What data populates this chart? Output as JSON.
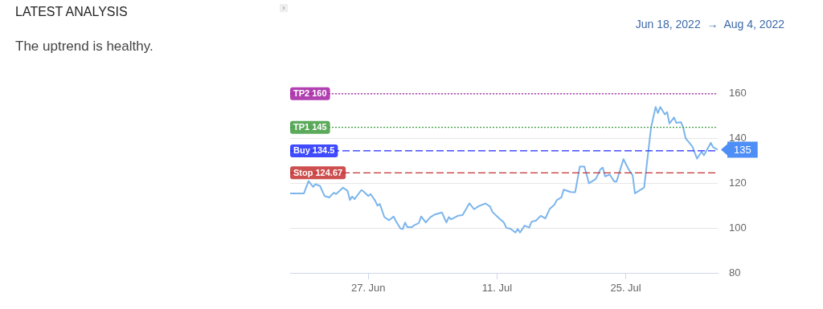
{
  "chart_data": {
    "type": "line",
    "title": "LATEST ANALYSIS",
    "subtitle": "The uptrend is healthy.",
    "annotations": [
      "Jun 18, 2022  →  Aug 4, 2022"
    ],
    "x": [
      "2022-06-18T12:00",
      "2022-06-20T00:00",
      "2022-06-20T12:00",
      "2022-06-21T00:00",
      "2022-06-21T06:00",
      "2022-06-21T18:00",
      "2022-06-22T06:00",
      "2022-06-22T18:00",
      "2022-06-23T06:00",
      "2022-06-23T12:00",
      "2022-06-24T06:00",
      "2022-06-24T18:00",
      "2022-06-25T00:00",
      "2022-06-25T06:00",
      "2022-06-25T12:00",
      "2022-06-26T06:00",
      "2022-06-26T12:00",
      "2022-06-27T00:00",
      "2022-06-27T06:00",
      "2022-06-27T18:00",
      "2022-06-28T00:00",
      "2022-06-28T06:00",
      "2022-06-28T18:00",
      "2022-06-29T06:00",
      "2022-06-29T18:00",
      "2022-06-30T00:00",
      "2022-06-30T12:00",
      "2022-06-30T18:00",
      "2022-07-01T00:00",
      "2022-07-01T06:00",
      "2022-07-01T18:00",
      "2022-07-02T00:00",
      "2022-07-02T12:00",
      "2022-07-02T18:00",
      "2022-07-03T06:00",
      "2022-07-03T18:00",
      "2022-07-04T06:00",
      "2022-07-05T00:00",
      "2022-07-05T12:00",
      "2022-07-05T18:00",
      "2022-07-06T00:00",
      "2022-07-06T18:00",
      "2022-07-07T06:00",
      "2022-07-08T00:00",
      "2022-07-08T12:00",
      "2022-07-09T00:00",
      "2022-07-09T18:00",
      "2022-07-10T06:00",
      "2022-07-10T12:00",
      "2022-07-11T06:00",
      "2022-07-11T18:00",
      "2022-07-12T00:00",
      "2022-07-12T12:00",
      "2022-07-13T00:00",
      "2022-07-13T06:00",
      "2022-07-13T12:00",
      "2022-07-14T00:00",
      "2022-07-14T12:00",
      "2022-07-14T18:00",
      "2022-07-15T06:00",
      "2022-07-15T18:00",
      "2022-07-16T06:00",
      "2022-07-16T18:00",
      "2022-07-17T06:00",
      "2022-07-17T12:00",
      "2022-07-18T00:00",
      "2022-07-18T06:00",
      "2022-07-19T00:00",
      "2022-07-19T12:00",
      "2022-07-20T00:00",
      "2022-07-20T12:00",
      "2022-07-21T00:00",
      "2022-07-21T18:00",
      "2022-07-22T06:00",
      "2022-07-22T12:00",
      "2022-07-22T18:00",
      "2022-07-23T06:00",
      "2022-07-23T18:00",
      "2022-07-24T00:00",
      "2022-07-24T18:00",
      "2022-07-25T06:00",
      "2022-07-25T18:00",
      "2022-07-26T00:00",
      "2022-07-27T00:00",
      "2022-07-27T18:00",
      "2022-07-28T06:00",
      "2022-07-28T12:00",
      "2022-07-28T18:00",
      "2022-07-29T06:00",
      "2022-07-29T12:00",
      "2022-07-29T18:00",
      "2022-07-30T06:00",
      "2022-07-30T12:00",
      "2022-07-31T00:00",
      "2022-07-31T06:00",
      "2022-07-31T12:00",
      "2022-08-01T06:00",
      "2022-08-01T18:00",
      "2022-08-02T06:00",
      "2022-08-02T12:00",
      "2022-08-03T06:00",
      "2022-08-03T12:00",
      "2022-08-04T00:00"
    ],
    "values": [
      115.5,
      115.5,
      121,
      118.4,
      119.6,
      118.8,
      114.3,
      113.7,
      115.8,
      115.2,
      118.1,
      116.6,
      112.5,
      114.1,
      112.9,
      117,
      116.3,
      114.3,
      115.2,
      112.2,
      110,
      110.8,
      104.9,
      103.5,
      105.2,
      103.1,
      99.8,
      99.6,
      102.5,
      100.4,
      100.4,
      101.3,
      102.3,
      105.2,
      102.5,
      104.9,
      106.1,
      107,
      102.5,
      104.9,
      103.9,
      105.5,
      105.8,
      111.1,
      108.4,
      109.8,
      111,
      109.6,
      107.2,
      104.3,
      102.5,
      100.2,
      99.6,
      98,
      99.6,
      98,
      101.1,
      100.2,
      102.8,
      103.4,
      105.5,
      104.3,
      108.7,
      110.5,
      112.5,
      113.7,
      117.2,
      116.1,
      116,
      127.5,
      127.5,
      120,
      122,
      126.3,
      127,
      123.1,
      123.9,
      120.8,
      120.8,
      130.8,
      126.7,
      123.5,
      115.5,
      118.1,
      144.9,
      154.1,
      151.4,
      154.1,
      150.8,
      151.8,
      146.7,
      149.4,
      147,
      147.3,
      144.9,
      140.2,
      136.4,
      131,
      134.1,
      132.5,
      138.1,
      136.1,
      135
    ],
    "value_labels": [
      null,
      null,
      null,
      null,
      null,
      null,
      null,
      null,
      null,
      null,
      null,
      null,
      null,
      null,
      null,
      null,
      null,
      null,
      null,
      null,
      null,
      null,
      null,
      null,
      null,
      null,
      null,
      null,
      null,
      null,
      null,
      null,
      null,
      null,
      null,
      null,
      null,
      null,
      null,
      null,
      null,
      null,
      null,
      null,
      null,
      null,
      null,
      null,
      null,
      null,
      null,
      null,
      null,
      null,
      null,
      null,
      null,
      null,
      null,
      null,
      null,
      null,
      null,
      null,
      null,
      null,
      null,
      null,
      null,
      null,
      null,
      null,
      null,
      null,
      null,
      null,
      null,
      null,
      null,
      null,
      null,
      null,
      null,
      null,
      null,
      null,
      null,
      null,
      null,
      null,
      null,
      null,
      null,
      null,
      null,
      null,
      null,
      null,
      null,
      null,
      null,
      null,
      "135"
    ],
    "color": "#7cb5ec",
    "xlim": [
      "2022-06-18T12:00",
      "2022-08-04T00:00"
    ],
    "xticks": [
      {
        "value": "2022-06-27",
        "label": "27. Jun"
      },
      {
        "value": "2022-07-11",
        "label": "11. Jul"
      },
      {
        "value": "2022-07-25",
        "label": "25. Jul"
      }
    ],
    "ylim": [
      80,
      160
    ],
    "yticks": [
      80,
      100,
      120,
      140,
      160
    ],
    "grid": "y",
    "ref_lines": [
      {
        "axis": "y",
        "value": 160,
        "label": "TP2 160",
        "color": "#a31ea3",
        "line_style": "dotted"
      },
      {
        "axis": "y",
        "value": 145,
        "label": "TP1 145",
        "color": "#3e9a3e",
        "line_style": "dotted"
      },
      {
        "axis": "y",
        "value": 134.5,
        "label": "Buy 134.5",
        "color": "#1f2bff",
        "line_style": "dashed"
      },
      {
        "axis": "y",
        "value": 124.67,
        "label": "Stop 124.67",
        "color": "#c43030",
        "line_style": "dashed"
      }
    ]
  }
}
